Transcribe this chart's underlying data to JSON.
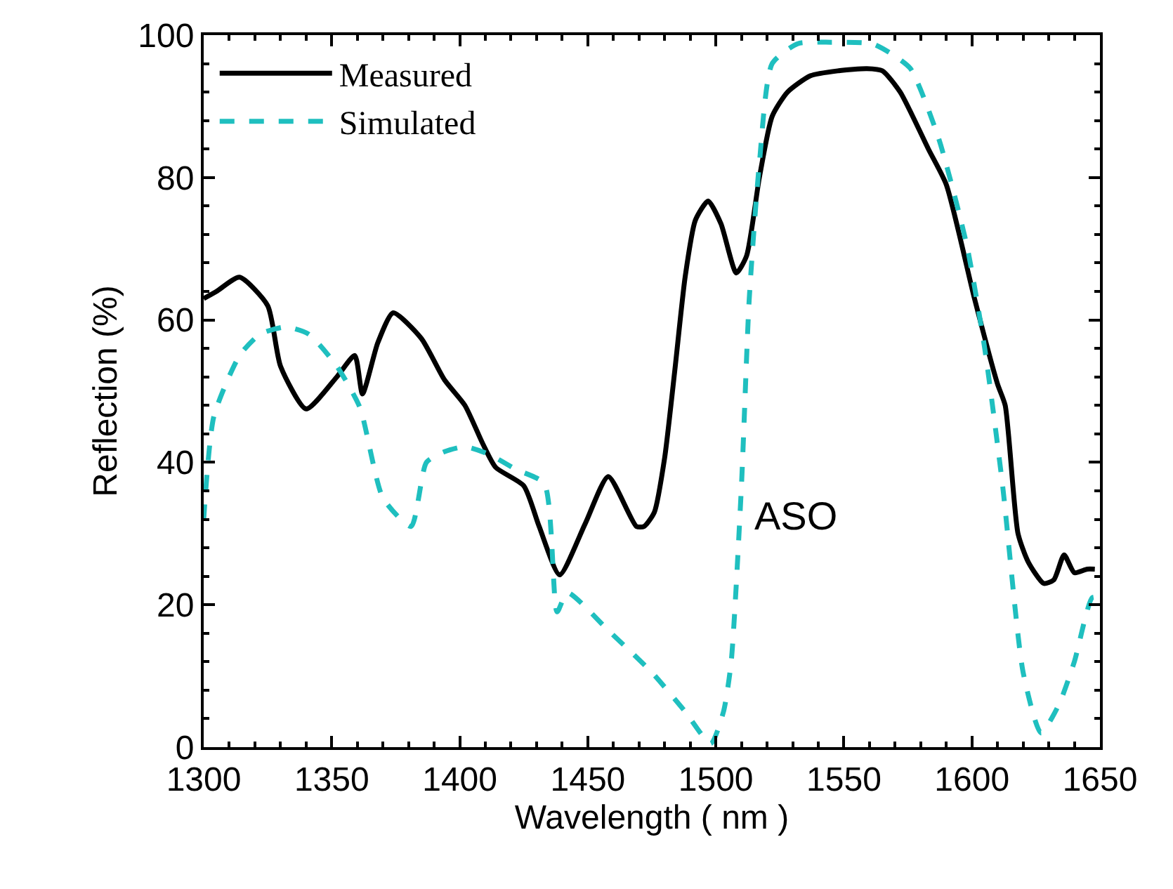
{
  "chart_data": {
    "type": "line",
    "xlabel": "Wavelength ( nm )",
    "ylabel": "Reflection (%)",
    "xlim": [
      1300,
      1650
    ],
    "xticks": [
      1300,
      1350,
      1400,
      1450,
      1500,
      1550,
      1600,
      1650
    ],
    "ylim": [
      0,
      100
    ],
    "yticks": [
      0,
      20,
      40,
      60,
      80,
      100
    ],
    "legend": "top left",
    "annotations": [
      "ASO"
    ],
    "series": [
      {
        "name": "Measured",
        "color": "#000000",
        "line_style": "solid",
        "x": [
          1300,
          1305,
          1314,
          1325,
          1330,
          1340,
          1352,
          1359,
          1362,
          1368,
          1374,
          1385,
          1394,
          1402,
          1409,
          1414,
          1425,
          1431,
          1439,
          1449,
          1458,
          1469,
          1472,
          1476,
          1480,
          1484,
          1488,
          1492,
          1497,
          1502,
          1508,
          1512,
          1517,
          1522,
          1528,
          1537,
          1548,
          1559,
          1565,
          1572,
          1583,
          1590,
          1601,
          1610,
          1613,
          1618,
          1622,
          1628,
          1632,
          1636,
          1640,
          1645,
          1648
        ],
        "values": [
          63,
          64,
          66,
          62,
          53.5,
          47.5,
          52,
          55,
          49.6,
          56.8,
          61,
          57.4,
          51.6,
          48,
          42.6,
          39.3,
          36.7,
          31,
          24.2,
          31.4,
          38,
          31,
          31,
          33,
          40.6,
          53,
          66,
          74,
          76.7,
          73.5,
          66.6,
          69,
          80,
          88.6,
          92,
          94.3,
          95,
          95.3,
          95,
          92,
          84,
          79,
          63,
          51,
          48,
          30,
          26,
          23,
          23.5,
          27,
          24.5,
          25,
          25
        ]
      },
      {
        "name": "Simulated",
        "color": "#1fbfbf",
        "line_style": "dashed",
        "x": [
          1300,
          1304,
          1314,
          1322,
          1332,
          1341,
          1352,
          1361,
          1370,
          1381,
          1387,
          1394,
          1402,
          1411,
          1422,
          1433,
          1438,
          1442,
          1458,
          1475,
          1488,
          1498,
          1503,
          1506,
          1510,
          1513,
          1517,
          1522,
          1532,
          1545,
          1561,
          1568,
          1576,
          1587,
          1598,
          1605,
          1612,
          1620,
          1627,
          1634,
          1640,
          1647,
          1650
        ],
        "values": [
          32,
          46.5,
          55,
          58,
          59,
          58,
          53.5,
          47.7,
          35,
          31,
          40,
          41.5,
          42.2,
          41.2,
          39,
          37,
          19,
          21.7,
          16.4,
          10.5,
          5,
          0.5,
          5,
          12,
          36.7,
          62.7,
          82,
          96,
          98.8,
          99,
          98.8,
          97.5,
          95.3,
          85.5,
          70.5,
          56,
          36.7,
          10.5,
          2,
          6,
          12,
          21,
          21
        ]
      }
    ]
  }
}
